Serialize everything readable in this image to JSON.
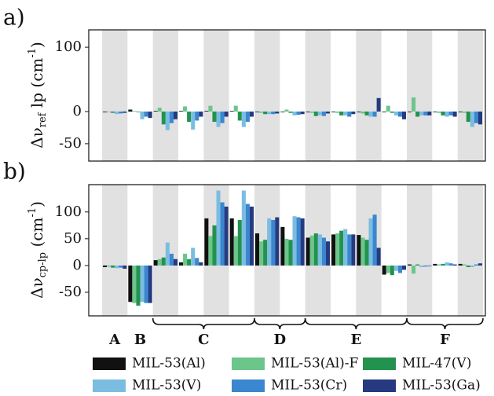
{
  "chart_data": [
    {
      "type": "bar",
      "panel_label": "a)",
      "ylabel": {
        "main": "Δν",
        "sub": "ref",
        "rest": " lp (cm",
        "sup": "-1",
        "end": ")"
      },
      "categories": [
        null,
        null,
        null,
        null,
        null,
        null,
        null,
        null,
        null,
        null,
        null,
        null,
        null,
        null,
        null
      ],
      "ylim": [
        -77,
        127
      ],
      "yticks": [
        -50,
        0,
        100
      ],
      "shade": true,
      "series": [
        {
          "values": [
            -1,
            3,
            1,
            1,
            1,
            1,
            -1,
            -1,
            -1,
            -1,
            -1,
            -1,
            -1,
            -1,
            -1
          ]
        },
        {
          "values": [
            -1,
            1,
            6,
            8,
            9,
            9,
            -2,
            3,
            -2,
            -2,
            -3,
            9,
            22,
            -2,
            -2
          ]
        },
        {
          "values": [
            -2,
            -1,
            -20,
            -16,
            -16,
            -14,
            -4,
            -2,
            -7,
            -6,
            -6,
            -2,
            -8,
            -6,
            -16
          ]
        },
        {
          "values": [
            -4,
            -12,
            -29,
            -28,
            -24,
            -24,
            -4,
            -6,
            -6,
            -6,
            -8,
            -6,
            -6,
            -8,
            -24
          ]
        },
        {
          "values": [
            -3,
            -8,
            -18,
            -14,
            -18,
            -16,
            -4,
            -5,
            -7,
            -8,
            -8,
            -8,
            -6,
            -6,
            -18
          ]
        },
        {
          "values": [
            -2,
            -10,
            -12,
            -8,
            -8,
            -8,
            -3,
            -4,
            -3,
            -4,
            21,
            -12,
            -6,
            -8,
            -20
          ]
        }
      ]
    },
    {
      "type": "bar",
      "panel_label": "b)",
      "ylabel": {
        "main": "Δν",
        "sub": "cp-lp",
        "rest": " (cm",
        "sup": "-1",
        "end": ")"
      },
      "categories": [
        null,
        null,
        null,
        null,
        null,
        null,
        null,
        null,
        null,
        null,
        null,
        null,
        null,
        null,
        null
      ],
      "ylim": [
        -94,
        151
      ],
      "yticks": [
        -50,
        0,
        50,
        100
      ],
      "shade": true,
      "groups": [
        {
          "label": "A",
          "first": 0,
          "last": 0
        },
        {
          "label": "B",
          "first": 1,
          "last": 1
        },
        {
          "label": "C",
          "first": 2,
          "last": 5
        },
        {
          "label": "D",
          "first": 6,
          "last": 7
        },
        {
          "label": "E",
          "first": 8,
          "last": 11
        },
        {
          "label": "F",
          "first": 12,
          "last": 14
        }
      ],
      "series": [
        {
          "name": "MIL-53(Al)",
          "color": "#111111",
          "values": [
            -3,
            -68,
            10,
            6,
            88,
            88,
            60,
            72,
            52,
            58,
            57,
            -17,
            2,
            3,
            3
          ]
        },
        {
          "name": "MIL-53(Al)-F",
          "color": "#6cc58a",
          "values": [
            -2,
            -70,
            12,
            22,
            55,
            55,
            45,
            50,
            56,
            60,
            52,
            -14,
            -15,
            2,
            2
          ]
        },
        {
          "name": "MIL-47(V)",
          "color": "#23924f",
          "values": [
            -4,
            -75,
            15,
            12,
            75,
            85,
            48,
            48,
            60,
            65,
            48,
            -18,
            2,
            3,
            -3
          ]
        },
        {
          "name": "MIL-53(V)",
          "color": "#7bbde0",
          "values": [
            -5,
            -68,
            43,
            33,
            140,
            140,
            88,
            92,
            58,
            68,
            88,
            -10,
            -3,
            6,
            -3
          ]
        },
        {
          "name": "MIL-53(Cr)",
          "color": "#3a87cf",
          "values": [
            -4,
            -70,
            22,
            14,
            118,
            115,
            85,
            90,
            52,
            58,
            95,
            -14,
            -2,
            4,
            2
          ]
        },
        {
          "name": "MIL-53(Ga)",
          "color": "#253a80",
          "values": [
            -6,
            -70,
            12,
            6,
            110,
            110,
            90,
            88,
            45,
            58,
            33,
            -8,
            -1,
            2,
            4
          ]
        }
      ]
    }
  ]
}
